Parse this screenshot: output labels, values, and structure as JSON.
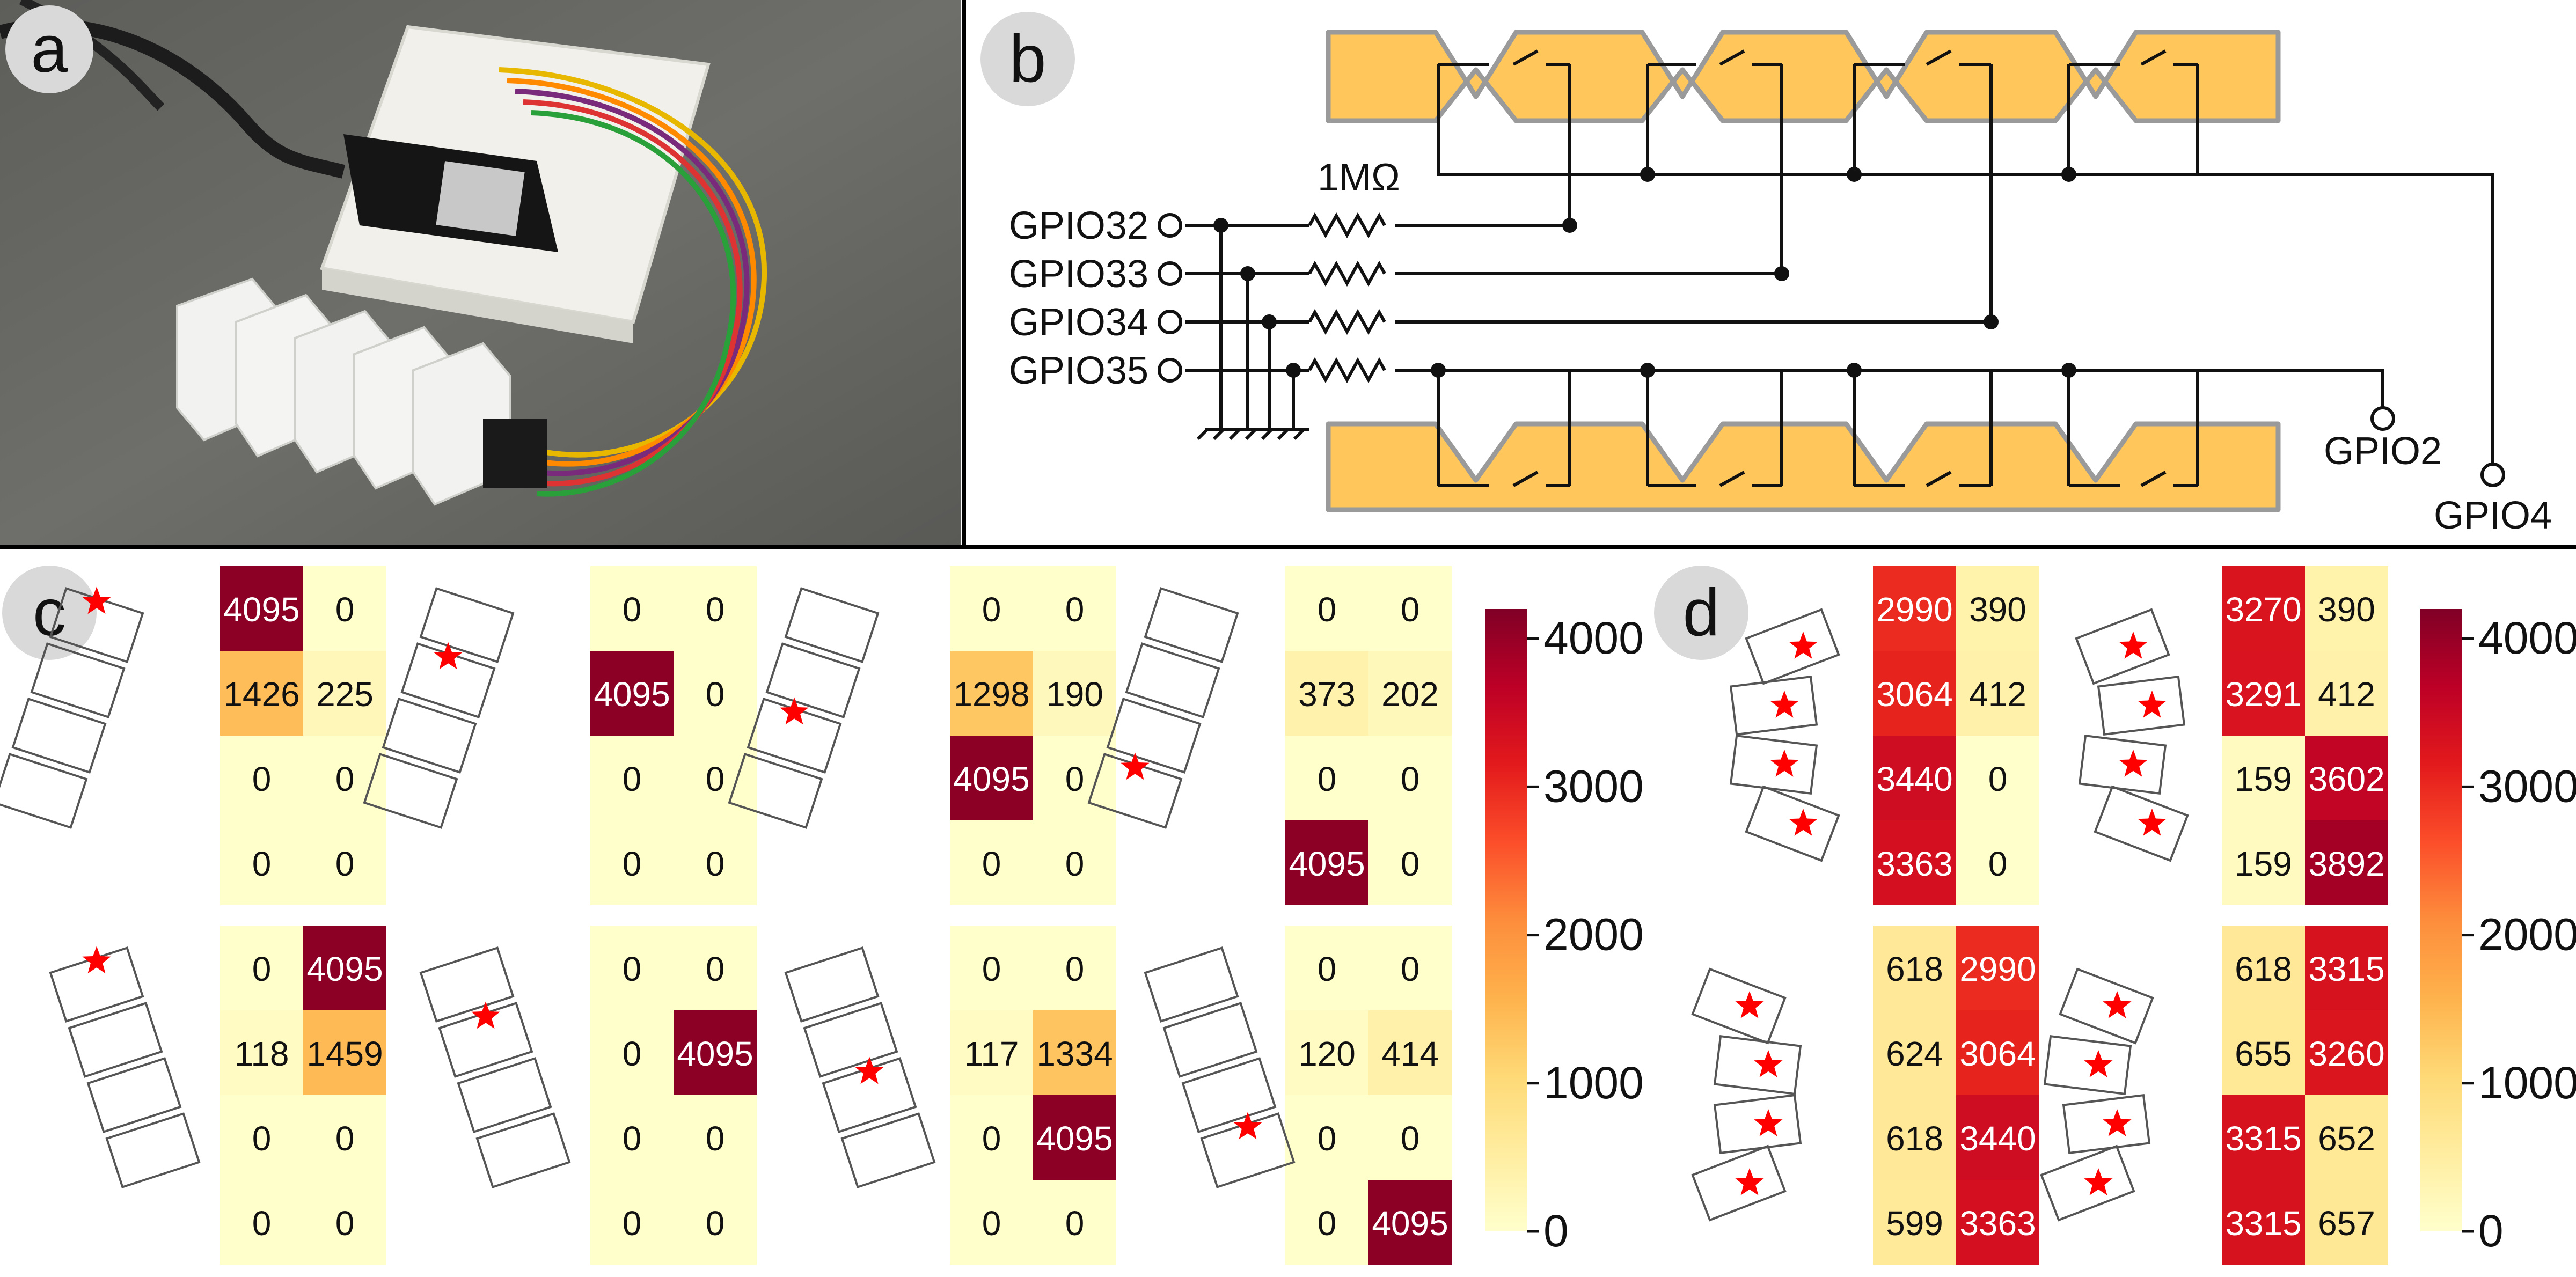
{
  "panels": {
    "a": {
      "label": "a"
    },
    "b": {
      "label": "b",
      "resistor_label": "1MΩ",
      "inputs": [
        "GPIO32",
        "GPIO33",
        "GPIO34",
        "GPIO35"
      ],
      "outputs": [
        "GPIO2",
        "GPIO4"
      ]
    },
    "c": {
      "label": "c",
      "matrices": [
        {
          "star_segment": 0,
          "values": [
            [
              4095,
              0
            ],
            [
              1426,
              225
            ],
            [
              0,
              0
            ],
            [
              0,
              0
            ]
          ]
        },
        {
          "star_segment": 1,
          "values": [
            [
              0,
              0
            ],
            [
              4095,
              0
            ],
            [
              0,
              0
            ],
            [
              0,
              0
            ]
          ]
        },
        {
          "star_segment": 2,
          "values": [
            [
              0,
              0
            ],
            [
              1298,
              190
            ],
            [
              4095,
              0
            ],
            [
              0,
              0
            ]
          ]
        },
        {
          "star_segment": 3,
          "values": [
            [
              0,
              0
            ],
            [
              373,
              202
            ],
            [
              0,
              0
            ],
            [
              4095,
              0
            ]
          ]
        },
        {
          "star_segment": 0,
          "values": [
            [
              0,
              4095
            ],
            [
              118,
              1459
            ],
            [
              0,
              0
            ],
            [
              0,
              0
            ]
          ]
        },
        {
          "star_segment": 1,
          "values": [
            [
              0,
              0
            ],
            [
              0,
              4095
            ],
            [
              0,
              0
            ],
            [
              0,
              0
            ]
          ]
        },
        {
          "star_segment": 2,
          "values": [
            [
              0,
              0
            ],
            [
              117,
              1334
            ],
            [
              0,
              4095
            ],
            [
              0,
              0
            ]
          ]
        },
        {
          "star_segment": 3,
          "values": [
            [
              0,
              0
            ],
            [
              120,
              414
            ],
            [
              0,
              0
            ],
            [
              0,
              4095
            ]
          ]
        }
      ],
      "colorbar": {
        "ticks": [
          "4000",
          "3000",
          "2000",
          "1000",
          "0"
        ]
      }
    },
    "d": {
      "label": "d",
      "matrices": [
        {
          "values": [
            [
              2990,
              390
            ],
            [
              3064,
              412
            ],
            [
              3440,
              0
            ],
            [
              3363,
              0
            ]
          ]
        },
        {
          "values": [
            [
              3270,
              390
            ],
            [
              3291,
              412
            ],
            [
              159,
              3602
            ],
            [
              159,
              3892
            ]
          ]
        },
        {
          "values": [
            [
              618,
              2990
            ],
            [
              624,
              3064
            ],
            [
              618,
              3440
            ],
            [
              599,
              3363
            ]
          ]
        },
        {
          "values": [
            [
              618,
              3315
            ],
            [
              655,
              3260
            ],
            [
              3315,
              652
            ],
            [
              3315,
              657
            ]
          ]
        }
      ],
      "colorbar": {
        "ticks": [
          "4000",
          "3000",
          "2000",
          "1000",
          "0"
        ]
      }
    }
  },
  "colors": {
    "electrode_fill": "#FFC65C",
    "electrode_edge": "#9a9a9a",
    "star": "#ff0000",
    "colormap": [
      "#ffffcc",
      "#ffeda0",
      "#fed976",
      "#feb24c",
      "#fd8d3c",
      "#fc4e2a",
      "#e31a1c",
      "#bd0026",
      "#800026"
    ]
  }
}
